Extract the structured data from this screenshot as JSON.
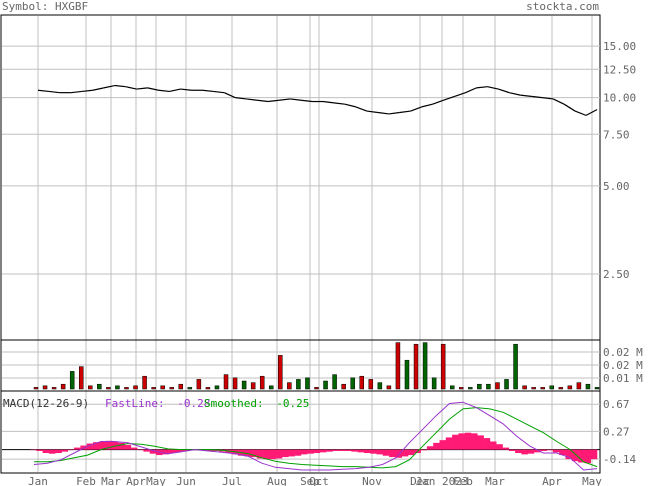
{
  "header": {
    "symbol_label": "Symbol: HXGBF",
    "site": "stockta.com"
  },
  "colors": {
    "frame": "#000000",
    "grid": "#c0c0c0",
    "price_line": "#000000",
    "volume_up": "#006400",
    "volume_down": "#cc0000",
    "macd_hist": "#ff1a75",
    "fast_line": "#9933cc",
    "smoothed_line": "#00a000",
    "axis_text": "#666666"
  },
  "chart_data": [
    {
      "type": "line",
      "panel": "price",
      "y_scale": "log",
      "ylim": [
        1.5,
        19
      ],
      "y_ticks": [
        15.0,
        12.5,
        10.0,
        7.5,
        5.0,
        2.5
      ],
      "y_tick_labels": [
        "15.00",
        "12.50",
        "10.00",
        "7.50",
        "5.00",
        "2.50"
      ],
      "x_tick_labels": [
        "Jan",
        "Feb",
        "Mar",
        "Apr",
        "May",
        "Jun",
        "Jul",
        "Aug",
        "Sep",
        "Oct",
        "Nov",
        "Dec",
        "Jan 2023",
        "Feb",
        "Mar",
        "Apr",
        "May"
      ],
      "series": [
        {
          "values": [
            10.6,
            10.5,
            10.4,
            10.4,
            10.5,
            10.6,
            10.8,
            11.0,
            10.9,
            10.7,
            10.8,
            10.6,
            10.5,
            10.7,
            10.6,
            10.6,
            10.5,
            10.4,
            10.0,
            9.9,
            9.8,
            9.7,
            9.8,
            9.9,
            9.8,
            9.7,
            9.7,
            9.6,
            9.5,
            9.3,
            9.0,
            8.9,
            8.8,
            8.9,
            9.0,
            9.3,
            9.5,
            9.8,
            10.1,
            10.4,
            10.8,
            10.9,
            10.7,
            10.4,
            10.2,
            10.1,
            10.0,
            9.9,
            9.5,
            9.0,
            8.7,
            9.1
          ]
        }
      ]
    },
    {
      "type": "bar",
      "panel": "volume",
      "y_tick_labels": [
        "0.02 M",
        "0.02 M",
        "0.01 M"
      ],
      "series": [
        {
          "values": [
            0.001,
            0.002,
            0.001,
            0.003,
            0.011,
            0.014,
            0.002,
            0.003,
            0.001,
            0.002,
            0.001,
            0.002,
            0.008,
            0.001,
            0.002,
            0.001,
            0.003,
            0.001,
            0.006,
            0.001,
            0.002,
            0.009,
            0.007,
            0.005,
            0.004,
            0.008,
            0.002,
            0.021,
            0.004,
            0.006,
            0.007,
            0.001,
            0.005,
            0.009,
            0.003,
            0.007,
            0.008,
            0.006,
            0.004,
            0.002,
            0.029,
            0.018,
            0.028,
            0.029,
            0.007,
            0.028,
            0.002,
            0.001,
            0.001,
            0.003,
            0.003,
            0.004,
            0.006,
            0.028,
            0.002,
            0.001,
            0.001,
            0.002,
            0.001,
            0.002,
            0.004,
            0.003,
            0.001
          ],
          "up": [
            false,
            false,
            false,
            false,
            true,
            false,
            false,
            true,
            false,
            true,
            false,
            false,
            false,
            false,
            false,
            false,
            false,
            true,
            false,
            false,
            true,
            false,
            false,
            true,
            false,
            false,
            true,
            false,
            false,
            true,
            true,
            false,
            true,
            true,
            false,
            true,
            false,
            false,
            true,
            false,
            false,
            true,
            false,
            true,
            true,
            false,
            true,
            false,
            true,
            true,
            true,
            false,
            true,
            true,
            false,
            false,
            false,
            true,
            false,
            false,
            false,
            true,
            true
          ]
        }
      ]
    },
    {
      "type": "area",
      "panel": "macd",
      "title": "MACD(12-26-9)",
      "fast_label": "FastLine:",
      "fast_value": "-0.28",
      "smooth_label": "Smoothed:",
      "smooth_value": "-0.25",
      "ylim": [
        -0.33,
        0.85
      ],
      "y_ticks": [
        0.67,
        0.27,
        -0.14
      ],
      "y_tick_labels": [
        "0.67",
        "0.27",
        "-0.14"
      ],
      "histogram": [
        0.0,
        -0.02,
        -0.05,
        -0.06,
        -0.05,
        -0.03,
        0.0,
        0.03,
        0.06,
        0.09,
        0.11,
        0.12,
        0.13,
        0.12,
        0.1,
        0.07,
        0.03,
        0.0,
        -0.03,
        -0.06,
        -0.08,
        -0.07,
        -0.05,
        -0.04,
        -0.02,
        -0.01,
        0.0,
        -0.01,
        -0.02,
        -0.02,
        -0.03,
        -0.05,
        -0.07,
        -0.09,
        -0.1,
        -0.11,
        -0.13,
        -0.14,
        -0.14,
        -0.13,
        -0.11,
        -0.1,
        -0.09,
        -0.07,
        -0.06,
        -0.05,
        -0.04,
        -0.03,
        -0.02,
        -0.02,
        -0.02,
        -0.03,
        -0.04,
        -0.05,
        -0.06,
        -0.07,
        -0.09,
        -0.11,
        -0.12,
        -0.1,
        -0.08,
        -0.05,
        -0.01,
        0.05,
        0.1,
        0.14,
        0.18,
        0.22,
        0.24,
        0.25,
        0.24,
        0.21,
        0.17,
        0.12,
        0.08,
        0.03,
        -0.02,
        -0.05,
        -0.07,
        -0.06,
        -0.04,
        -0.02,
        -0.01,
        -0.04,
        -0.08,
        -0.14,
        -0.17,
        -0.19,
        -0.2,
        -0.14
      ],
      "fast": [
        -0.22,
        -0.2,
        -0.15,
        -0.05,
        0.05,
        0.12,
        0.12,
        0.1,
        0.04,
        -0.02,
        -0.06,
        -0.03,
        0.0,
        -0.02,
        -0.04,
        -0.06,
        -0.1,
        -0.2,
        -0.26,
        -0.28,
        -0.3,
        -0.3,
        -0.3,
        -0.29,
        -0.28,
        -0.26,
        -0.22,
        -0.12,
        0.1,
        0.3,
        0.5,
        0.68,
        0.7,
        0.62,
        0.5,
        0.38,
        0.2,
        0.05,
        -0.05,
        -0.05,
        -0.12,
        -0.3,
        -0.28
      ],
      "smoothed": [
        -0.18,
        -0.18,
        -0.16,
        -0.12,
        -0.08,
        0.0,
        0.05,
        0.09,
        0.08,
        0.05,
        0.01,
        0.0,
        0.0,
        0.0,
        -0.01,
        -0.03,
        -0.06,
        -0.12,
        -0.17,
        -0.2,
        -0.22,
        -0.23,
        -0.24,
        -0.25,
        -0.25,
        -0.26,
        -0.27,
        -0.25,
        -0.15,
        0.05,
        0.25,
        0.45,
        0.6,
        0.62,
        0.6,
        0.55,
        0.45,
        0.35,
        0.25,
        0.12,
        0.0,
        -0.18,
        -0.25
      ]
    }
  ]
}
